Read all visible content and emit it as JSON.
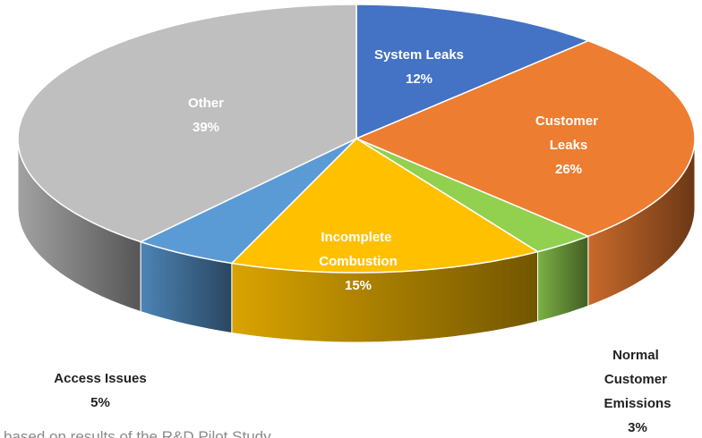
{
  "chart_data": {
    "type": "pie3d",
    "categories": [
      "System Leaks",
      "Customer Leaks",
      "Normal Customer Emissions",
      "Incomplete Combustion",
      "Access Issues",
      "Other"
    ],
    "values": [
      12,
      26,
      3,
      15,
      5,
      39
    ],
    "value_labels": [
      "12%",
      "26%",
      "3%",
      "15%",
      "5%",
      "39%"
    ],
    "colors": [
      "#4472c4",
      "#ed7d31",
      "#92d050",
      "#ffc000",
      "#5b9bd5",
      "#bfbfbf"
    ],
    "footnote": "based on results of the R&D Pilot Study"
  }
}
